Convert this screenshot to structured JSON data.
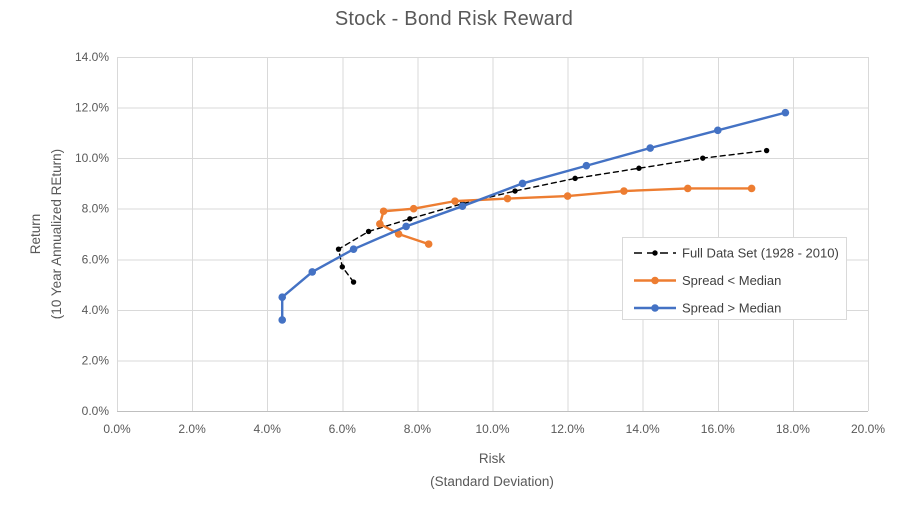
{
  "chart_data": {
    "type": "line",
    "title": "Stock - Bond Risk Reward",
    "xlabel_line1": "Risk",
    "xlabel_line2": "(Standard Deviation)",
    "ylabel_line1": "Return",
    "ylabel_line2": "(10 Year Annualized REturn)",
    "xlim": [
      0,
      20
    ],
    "ylim": [
      0,
      14
    ],
    "x_tick_values": [
      0,
      2,
      4,
      6,
      8,
      10,
      12,
      14,
      16,
      18,
      20
    ],
    "x_tick_labels": [
      "0.0%",
      "2.0%",
      "4.0%",
      "6.0%",
      "8.0%",
      "10.0%",
      "12.0%",
      "14.0%",
      "16.0%",
      "18.0%",
      "20.0%"
    ],
    "y_tick_values": [
      0,
      2,
      4,
      6,
      8,
      10,
      12,
      14
    ],
    "y_tick_labels": [
      "0.0%",
      "2.0%",
      "4.0%",
      "6.0%",
      "8.0%",
      "10.0%",
      "12.0%",
      "14.0%"
    ],
    "grid": true,
    "legend_position": "inside-right",
    "series": [
      {
        "name": "Full Data Set (1928 - 2010)",
        "color": "#000000",
        "line_style": "dashed",
        "line_width": 1.4,
        "marker_radius": 2.7,
        "points": [
          [
            6.3,
            5.1
          ],
          [
            6.0,
            5.7
          ],
          [
            5.9,
            6.4
          ],
          [
            6.7,
            7.1
          ],
          [
            7.8,
            7.6
          ],
          [
            9.2,
            8.2
          ],
          [
            10.6,
            8.7
          ],
          [
            12.2,
            9.2
          ],
          [
            13.9,
            9.6
          ],
          [
            15.6,
            10.0
          ],
          [
            17.3,
            10.3
          ]
        ]
      },
      {
        "name": "Spread < Median",
        "color": "#ED7D31",
        "line_style": "solid",
        "line_width": 2.4,
        "marker_radius": 3.8,
        "points": [
          [
            8.3,
            6.6
          ],
          [
            7.5,
            7.0
          ],
          [
            7.0,
            7.4
          ],
          [
            7.1,
            7.9
          ],
          [
            7.9,
            8.0
          ],
          [
            9.0,
            8.3
          ],
          [
            10.4,
            8.4
          ],
          [
            12.0,
            8.5
          ],
          [
            13.5,
            8.7
          ],
          [
            15.2,
            8.8
          ],
          [
            16.9,
            8.8
          ]
        ]
      },
      {
        "name": "Spread > Median",
        "color": "#4472C4",
        "line_style": "solid",
        "line_width": 2.4,
        "marker_radius": 3.8,
        "points": [
          [
            4.4,
            3.6
          ],
          [
            4.4,
            4.5
          ],
          [
            5.2,
            5.5
          ],
          [
            6.3,
            6.4
          ],
          [
            7.7,
            7.3
          ],
          [
            9.2,
            8.1
          ],
          [
            10.8,
            9.0
          ],
          [
            12.5,
            9.7
          ],
          [
            14.2,
            10.4
          ],
          [
            16.0,
            11.1
          ],
          [
            17.8,
            11.8
          ]
        ]
      }
    ]
  },
  "colors": {
    "background": "#FFFFFF",
    "title_text": "#595959",
    "axis_text": "#595959",
    "gridline": "#D9D9D9",
    "axis_line": "#BFBFBF",
    "legend_border": "#D9D9D9",
    "legend_background": "#FFFFFF",
    "legend_text": "#404040"
  }
}
